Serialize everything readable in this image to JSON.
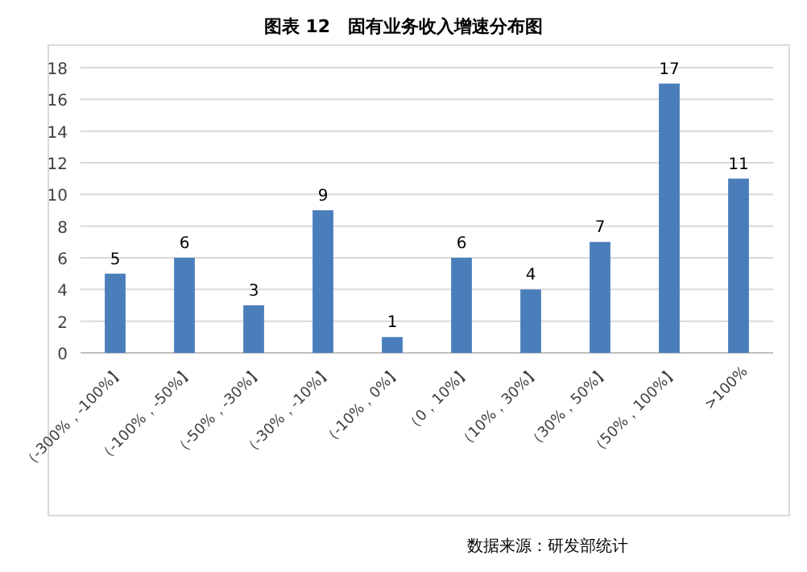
{
  "chart_data": {
    "type": "bar",
    "title": "图表 12　固有业务收入增速分布图",
    "categories": [
      "（-300%，-100%】",
      "（-100%，-50%】",
      "（-50%，-30%】",
      "（-30%，-10%】",
      "（-10%，0%】",
      "（0，10%】",
      "（10%，30%】",
      "（30%，50%】",
      "（50%，100%】",
      ">100%"
    ],
    "values": [
      5,
      6,
      3,
      9,
      1,
      6,
      4,
      7,
      17,
      11
    ],
    "color": "#4a7ebb",
    "ylim": [
      0,
      18
    ],
    "yticks": [
      0,
      2,
      4,
      6,
      8,
      10,
      12,
      14,
      16,
      18
    ],
    "grid": "y",
    "data_labels": true,
    "legend": false,
    "annotations": [
      "数据来源：研发部统计"
    ]
  }
}
